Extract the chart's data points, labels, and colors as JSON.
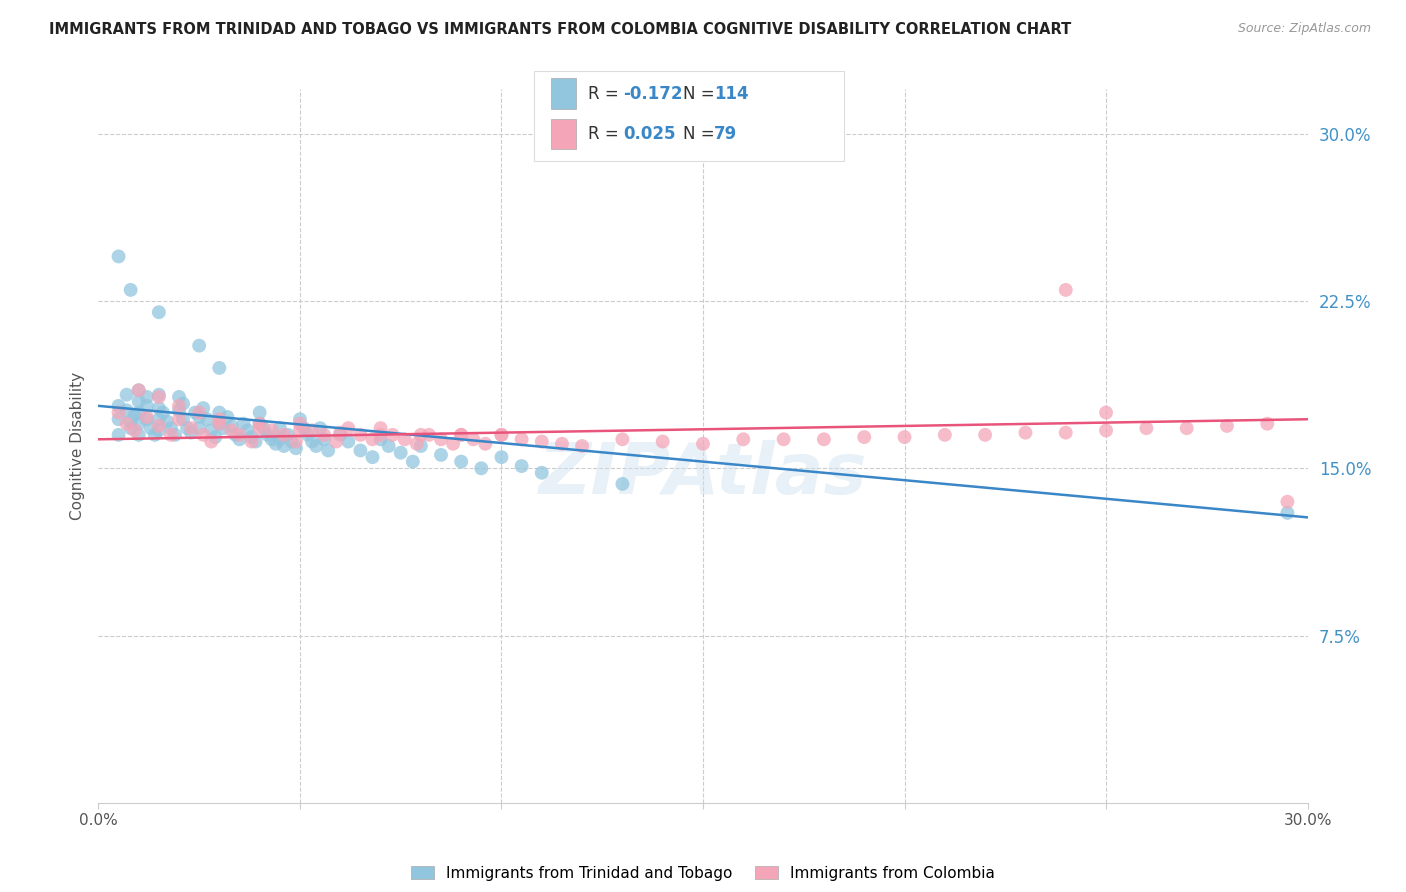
{
  "title": "IMMIGRANTS FROM TRINIDAD AND TOBAGO VS IMMIGRANTS FROM COLOMBIA COGNITIVE DISABILITY CORRELATION CHART",
  "source": "Source: ZipAtlas.com",
  "ylabel": "Cognitive Disability",
  "right_yticks": [
    "30.0%",
    "22.5%",
    "15.0%",
    "7.5%"
  ],
  "right_ytick_vals": [
    0.3,
    0.225,
    0.15,
    0.075
  ],
  "color_blue": "#92c5de",
  "color_pink": "#f4a6b8",
  "line_blue": "#3a87c8",
  "line_pink": "#e8547a",
  "watermark": "ZIPAtlas",
  "xmin": 0.0,
  "xmax": 0.3,
  "ymin": 0.0,
  "ymax": 0.32,
  "blue_line_x": [
    0.0,
    0.3
  ],
  "blue_line_y": [
    0.178,
    0.128
  ],
  "pink_line_x": [
    0.0,
    0.3
  ],
  "pink_line_y": [
    0.163,
    0.172
  ],
  "legend_label1": "Immigrants from Trinidad and Tobago",
  "legend_label2": "Immigrants from Colombia",
  "blue_scatter_x": [
    0.005,
    0.005,
    0.005,
    0.007,
    0.007,
    0.008,
    0.008,
    0.009,
    0.01,
    0.01,
    0.01,
    0.01,
    0.01,
    0.012,
    0.012,
    0.012,
    0.013,
    0.014,
    0.015,
    0.015,
    0.015,
    0.015,
    0.016,
    0.017,
    0.018,
    0.019,
    0.02,
    0.02,
    0.021,
    0.021,
    0.022,
    0.023,
    0.024,
    0.025,
    0.025,
    0.026,
    0.027,
    0.028,
    0.029,
    0.03,
    0.03,
    0.031,
    0.032,
    0.033,
    0.034,
    0.035,
    0.036,
    0.037,
    0.038,
    0.039,
    0.04,
    0.04,
    0.041,
    0.042,
    0.043,
    0.044,
    0.045,
    0.045,
    0.046,
    0.047,
    0.048,
    0.049,
    0.05,
    0.051,
    0.052,
    0.053,
    0.054,
    0.055,
    0.056,
    0.057,
    0.06,
    0.062,
    0.065,
    0.068,
    0.07,
    0.072,
    0.075,
    0.078,
    0.08,
    0.085,
    0.09,
    0.095,
    0.1,
    0.105,
    0.11,
    0.13,
    0.005,
    0.008,
    0.015,
    0.025,
    0.03,
    0.295
  ],
  "blue_scatter_y": [
    0.178,
    0.172,
    0.165,
    0.183,
    0.176,
    0.171,
    0.168,
    0.174,
    0.185,
    0.18,
    0.175,
    0.17,
    0.165,
    0.182,
    0.178,
    0.172,
    0.168,
    0.165,
    0.183,
    0.177,
    0.172,
    0.167,
    0.175,
    0.171,
    0.168,
    0.165,
    0.182,
    0.176,
    0.179,
    0.172,
    0.168,
    0.166,
    0.175,
    0.173,
    0.168,
    0.177,
    0.172,
    0.167,
    0.164,
    0.175,
    0.17,
    0.168,
    0.173,
    0.169,
    0.165,
    0.163,
    0.17,
    0.167,
    0.164,
    0.162,
    0.175,
    0.17,
    0.168,
    0.165,
    0.163,
    0.161,
    0.168,
    0.163,
    0.16,
    0.165,
    0.162,
    0.159,
    0.172,
    0.168,
    0.165,
    0.162,
    0.16,
    0.168,
    0.163,
    0.158,
    0.165,
    0.162,
    0.158,
    0.155,
    0.163,
    0.16,
    0.157,
    0.153,
    0.16,
    0.156,
    0.153,
    0.15,
    0.155,
    0.151,
    0.148,
    0.143,
    0.245,
    0.23,
    0.22,
    0.205,
    0.195,
    0.13
  ],
  "pink_scatter_x": [
    0.005,
    0.007,
    0.009,
    0.012,
    0.015,
    0.018,
    0.02,
    0.023,
    0.026,
    0.028,
    0.03,
    0.033,
    0.035,
    0.038,
    0.04,
    0.043,
    0.046,
    0.049,
    0.05,
    0.053,
    0.056,
    0.059,
    0.062,
    0.065,
    0.068,
    0.07,
    0.073,
    0.076,
    0.079,
    0.082,
    0.085,
    0.088,
    0.09,
    0.093,
    0.096,
    0.1,
    0.105,
    0.11,
    0.115,
    0.12,
    0.13,
    0.14,
    0.15,
    0.16,
    0.17,
    0.18,
    0.19,
    0.2,
    0.21,
    0.22,
    0.23,
    0.24,
    0.25,
    0.26,
    0.27,
    0.28,
    0.29,
    0.01,
    0.015,
    0.02,
    0.025,
    0.03,
    0.04,
    0.05,
    0.06,
    0.07,
    0.08,
    0.09,
    0.1,
    0.295,
    0.25,
    0.24
  ],
  "pink_scatter_y": [
    0.175,
    0.17,
    0.167,
    0.173,
    0.169,
    0.165,
    0.172,
    0.168,
    0.165,
    0.162,
    0.17,
    0.167,
    0.165,
    0.162,
    0.17,
    0.167,
    0.165,
    0.162,
    0.17,
    0.167,
    0.165,
    0.162,
    0.168,
    0.165,
    0.163,
    0.168,
    0.165,
    0.163,
    0.161,
    0.165,
    0.163,
    0.161,
    0.165,
    0.163,
    0.161,
    0.165,
    0.163,
    0.162,
    0.161,
    0.16,
    0.163,
    0.162,
    0.161,
    0.163,
    0.163,
    0.163,
    0.164,
    0.164,
    0.165,
    0.165,
    0.166,
    0.166,
    0.167,
    0.168,
    0.168,
    0.169,
    0.17,
    0.185,
    0.182,
    0.178,
    0.175,
    0.172,
    0.168,
    0.167,
    0.166,
    0.165,
    0.165,
    0.165,
    0.165,
    0.135,
    0.175,
    0.23
  ]
}
